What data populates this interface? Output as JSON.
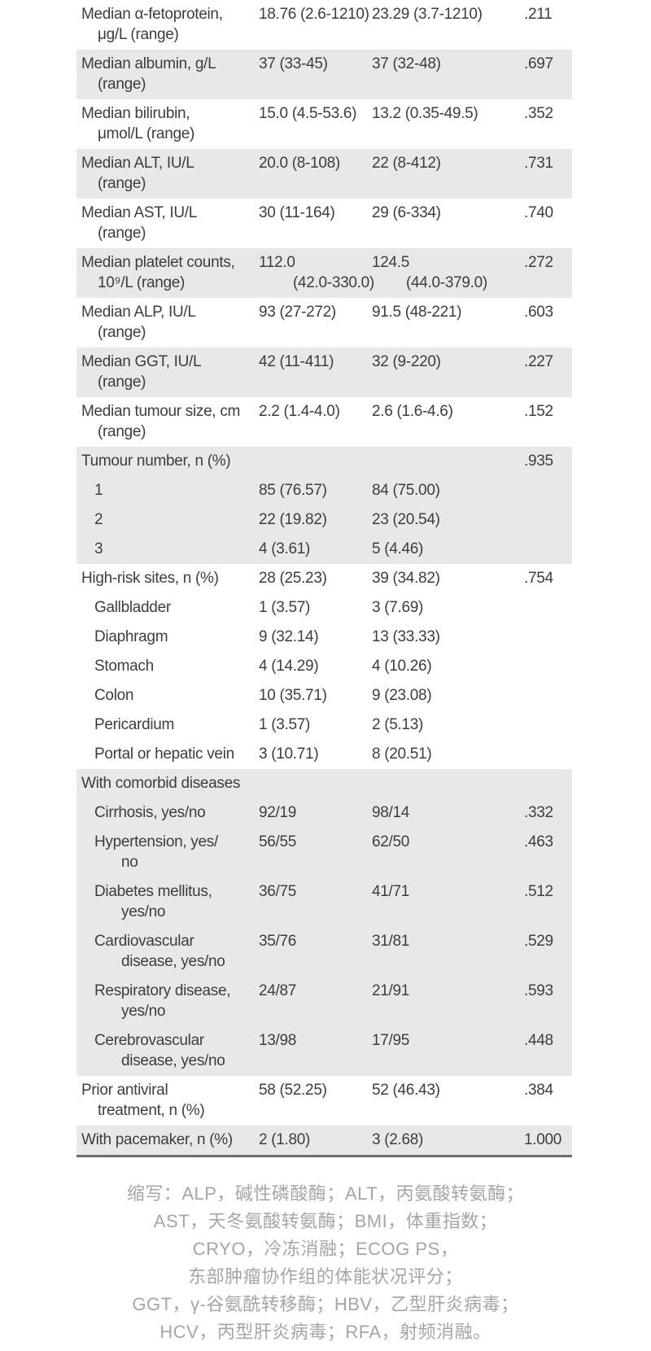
{
  "colors": {
    "row_shade": "#e9e8e8",
    "table_text": "#3d3d3d",
    "table_bottom_border": "#6b6b6b",
    "footnote_text": "#a5a5a5",
    "background": "#ffffff"
  },
  "table": {
    "rows": [
      {
        "label": "Median α-fetoprotein,\nμg/L (range)",
        "value1": "18.76 (2.6-1210)",
        "value2": "23.29 (3.7-1210)",
        "p": ".211",
        "shaded": false,
        "indent": 0
      },
      {
        "label": "Median albumin, g/L\n(range)",
        "value1": "37 (33-45)",
        "value2": "37 (32-48)",
        "p": ".697",
        "shaded": true,
        "indent": 0
      },
      {
        "label": "Median bilirubin,\nμmol/L (range)",
        "value1": "15.0 (4.5-53.6)",
        "value2": "13.2 (0.35-49.5)",
        "p": ".352",
        "shaded": false,
        "indent": 0
      },
      {
        "label": "Median ALT, IU/L\n(range)",
        "value1": "20.0 (8-108)",
        "value2": "22 (8-412)",
        "p": ".731",
        "shaded": true,
        "indent": 0
      },
      {
        "label": "Median AST, IU/L\n(range)",
        "value1": "30 (11-164)",
        "value2": "29 (6-334)",
        "p": ".740",
        "shaded": false,
        "indent": 0
      },
      {
        "label": "Median platelet counts,\n10⁹/L (range)",
        "value1": "112.0\n(42.0-330.0)",
        "value2": "124.5\n(44.0-379.0)",
        "p": ".272",
        "shaded": true,
        "indent": 0
      },
      {
        "label": "Median ALP, IU/L\n(range)",
        "value1": "93 (27-272)",
        "value2": "91.5 (48-221)",
        "p": ".603",
        "shaded": false,
        "indent": 0
      },
      {
        "label": "Median GGT, IU/L\n(range)",
        "value1": "42 (11-411)",
        "value2": "32 (9-220)",
        "p": ".227",
        "shaded": true,
        "indent": 0
      },
      {
        "label": "Median tumour size, cm\n(range)",
        "value1": "2.2 (1.4-4.0)",
        "value2": "2.6 (1.6-4.6)",
        "p": ".152",
        "shaded": false,
        "indent": 0
      },
      {
        "label": "Tumour number, n (%)",
        "value1": "",
        "value2": "",
        "p": ".935",
        "shaded": true,
        "indent": 0
      },
      {
        "label": "1",
        "value1": "85 (76.57)",
        "value2": "84 (75.00)",
        "p": "",
        "shaded": true,
        "indent": 1
      },
      {
        "label": "2",
        "value1": "22 (19.82)",
        "value2": "23 (20.54)",
        "p": "",
        "shaded": true,
        "indent": 1
      },
      {
        "label": "3",
        "value1": "4 (3.61)",
        "value2": "5 (4.46)",
        "p": "",
        "shaded": true,
        "indent": 1
      },
      {
        "label": "High-risk sites, n (%)",
        "value1": "28 (25.23)",
        "value2": "39 (34.82)",
        "p": ".754",
        "shaded": false,
        "indent": 0
      },
      {
        "label": "Gallbladder",
        "value1": "1 (3.57)",
        "value2": "3 (7.69)",
        "p": "",
        "shaded": false,
        "indent": 1
      },
      {
        "label": "Diaphragm",
        "value1": "9 (32.14)",
        "value2": "13 (33.33)",
        "p": "",
        "shaded": false,
        "indent": 1
      },
      {
        "label": "Stomach",
        "value1": "4 (14.29)",
        "value2": "4 (10.26)",
        "p": "",
        "shaded": false,
        "indent": 1
      },
      {
        "label": "Colon",
        "value1": "10 (35.71)",
        "value2": "9 (23.08)",
        "p": "",
        "shaded": false,
        "indent": 1
      },
      {
        "label": "Pericardium",
        "value1": "1 (3.57)",
        "value2": "2 (5.13)",
        "p": "",
        "shaded": false,
        "indent": 1
      },
      {
        "label": "Portal or hepatic vein",
        "value1": "3 (10.71)",
        "value2": "8 (20.51)",
        "p": "",
        "shaded": false,
        "indent": 1
      },
      {
        "label": "With comorbid diseases",
        "value1": "",
        "value2": "",
        "p": "",
        "shaded": true,
        "indent": 0
      },
      {
        "label": "Cirrhosis, yes/no",
        "value1": "92/19",
        "value2": "98/14",
        "p": ".332",
        "shaded": true,
        "indent": 1
      },
      {
        "label": "Hypertension, yes/\nno",
        "value1": "56/55",
        "value2": "62/50",
        "p": ".463",
        "shaded": true,
        "indent": 1
      },
      {
        "label": "Diabetes mellitus,\nyes/no",
        "value1": "36/75",
        "value2": "41/71",
        "p": ".512",
        "shaded": true,
        "indent": 1
      },
      {
        "label": "Cardiovascular\ndisease, yes/no",
        "value1": "35/76",
        "value2": "31/81",
        "p": ".529",
        "shaded": true,
        "indent": 1
      },
      {
        "label": "Respiratory disease,\nyes/no",
        "value1": "24/87",
        "value2": "21/91",
        "p": ".593",
        "shaded": true,
        "indent": 1
      },
      {
        "label": "Cerebrovascular\ndisease, yes/no",
        "value1": "13/98",
        "value2": "17/95",
        "p": ".448",
        "shaded": true,
        "indent": 1
      },
      {
        "label": "Prior antiviral\ntreatment, n (%)",
        "value1": "58 (52.25)",
        "value2": "52 (46.43)",
        "p": ".384",
        "shaded": false,
        "indent": 0
      },
      {
        "label": "With pacemaker, n (%)",
        "value1": "2 (1.80)",
        "value2": "3 (2.68)",
        "p": "1.000",
        "shaded": true,
        "indent": 0
      }
    ]
  },
  "footnote": {
    "lines": [
      "缩写：ALP，碱性磷酸酶；ALT，丙氨酸转氨酶；",
      "AST，天冬氨酸转氨酶；BMI，体重指数；",
      "CRYO，冷冻消融；ECOG PS，",
      "东部肿瘤协作组的体能状况评分；",
      "GGT，γ-谷氨酰转移酶；HBV，乙型肝炎病毒；",
      "HCV，丙型肝炎病毒；RFA，射频消融。"
    ]
  }
}
